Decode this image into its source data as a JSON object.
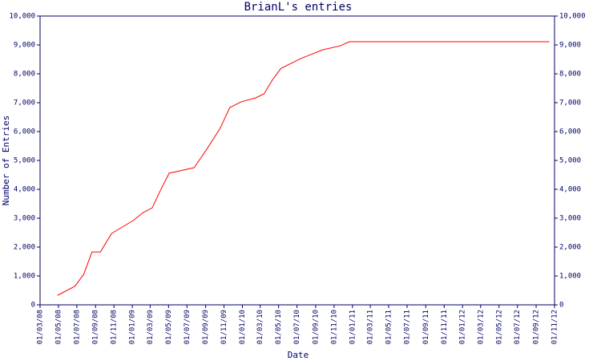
{
  "chart_data": {
    "type": "line",
    "title": "BrianL's entries",
    "x_label": "Date",
    "y_label": "Number of Entries",
    "color": "#ff0000",
    "axis_color": "#000066",
    "grid": false,
    "x": [
      "2008-04-28",
      "2008-06-24",
      "2008-07-24",
      "2008-08-20",
      "2008-09-17",
      "2008-10-24",
      "2008-11-25",
      "2009-01-04",
      "2009-02-05",
      "2009-03-08",
      "2009-04-03",
      "2009-05-03",
      "2009-06-07",
      "2009-07-25",
      "2009-09-03",
      "2009-10-19",
      "2009-11-20",
      "2009-12-28",
      "2010-02-15",
      "2010-03-14",
      "2010-04-10",
      "2010-05-09",
      "2010-07-14",
      "2010-09-24",
      "2010-11-22",
      "2010-12-21",
      "2012-10-15"
    ],
    "values": [
      330,
      640,
      1060,
      1830,
      1830,
      2470,
      2670,
      2920,
      3190,
      3360,
      3940,
      4560,
      4640,
      4750,
      5360,
      6110,
      6830,
      7030,
      7170,
      7310,
      7780,
      8190,
      8530,
      8830,
      8970,
      9110,
      9110
    ],
    "xlim": [
      "2008-03-01",
      "2012-11-01"
    ],
    "xticks": [
      {
        "value": "2008-03-01",
        "label": "01/03/08"
      },
      {
        "value": "2008-05-01",
        "label": "01/05/08"
      },
      {
        "value": "2008-07-01",
        "label": "01/07/08"
      },
      {
        "value": "2008-09-01",
        "label": "01/09/08"
      },
      {
        "value": "2008-11-01",
        "label": "01/11/08"
      },
      {
        "value": "2009-01-01",
        "label": "01/01/09"
      },
      {
        "value": "2009-03-01",
        "label": "01/03/09"
      },
      {
        "value": "2009-05-01",
        "label": "01/05/09"
      },
      {
        "value": "2009-07-01",
        "label": "01/07/09"
      },
      {
        "value": "2009-09-01",
        "label": "01/09/09"
      },
      {
        "value": "2009-11-01",
        "label": "01/11/09"
      },
      {
        "value": "2010-01-01",
        "label": "01/01/10"
      },
      {
        "value": "2010-03-01",
        "label": "01/03/10"
      },
      {
        "value": "2010-05-01",
        "label": "01/05/10"
      },
      {
        "value": "2010-07-01",
        "label": "01/07/10"
      },
      {
        "value": "2010-09-01",
        "label": "01/09/10"
      },
      {
        "value": "2010-11-01",
        "label": "01/11/10"
      },
      {
        "value": "2011-01-01",
        "label": "01/01/11"
      },
      {
        "value": "2011-03-01",
        "label": "01/03/11"
      },
      {
        "value": "2011-05-01",
        "label": "01/05/11"
      },
      {
        "value": "2011-07-01",
        "label": "01/07/11"
      },
      {
        "value": "2011-09-01",
        "label": "01/09/11"
      },
      {
        "value": "2011-11-01",
        "label": "01/11/11"
      },
      {
        "value": "2012-01-01",
        "label": "01/01/12"
      },
      {
        "value": "2012-03-01",
        "label": "01/03/12"
      },
      {
        "value": "2012-05-01",
        "label": "01/05/12"
      },
      {
        "value": "2012-07-01",
        "label": "01/07/12"
      },
      {
        "value": "2012-09-01",
        "label": "01/09/12"
      },
      {
        "value": "2012-11-01",
        "label": "01/11/12"
      }
    ],
    "ylim": [
      0,
      10000
    ],
    "yticks": [
      0,
      {
        "value": 1000,
        "label": "1,000"
      },
      {
        "value": 2000,
        "label": "2,000"
      },
      {
        "value": 3000,
        "label": "3,000"
      },
      {
        "value": 4000,
        "label": "4,000"
      },
      {
        "value": 5000,
        "label": "5,000"
      },
      {
        "value": 6000,
        "label": "6,000"
      },
      {
        "value": 7000,
        "label": "7,000"
      },
      {
        "value": 8000,
        "label": "8,000"
      },
      {
        "value": 9000,
        "label": "9,000"
      },
      {
        "value": 10000,
        "label": "10,000"
      }
    ],
    "y2lim": [
      0,
      10000
    ],
    "y2ticks": [
      0,
      {
        "value": 1000,
        "label": "1,000"
      },
      {
        "value": 2000,
        "label": "2,000"
      },
      {
        "value": 3000,
        "label": "3,000"
      },
      {
        "value": 4000,
        "label": "4,000"
      },
      {
        "value": 5000,
        "label": "5,000"
      },
      {
        "value": 6000,
        "label": "6,000"
      },
      {
        "value": 7000,
        "label": "7,000"
      },
      {
        "value": 8000,
        "label": "8,000"
      },
      {
        "value": 9000,
        "label": "9,000"
      },
      {
        "value": 10000,
        "label": "10,000"
      }
    ]
  }
}
